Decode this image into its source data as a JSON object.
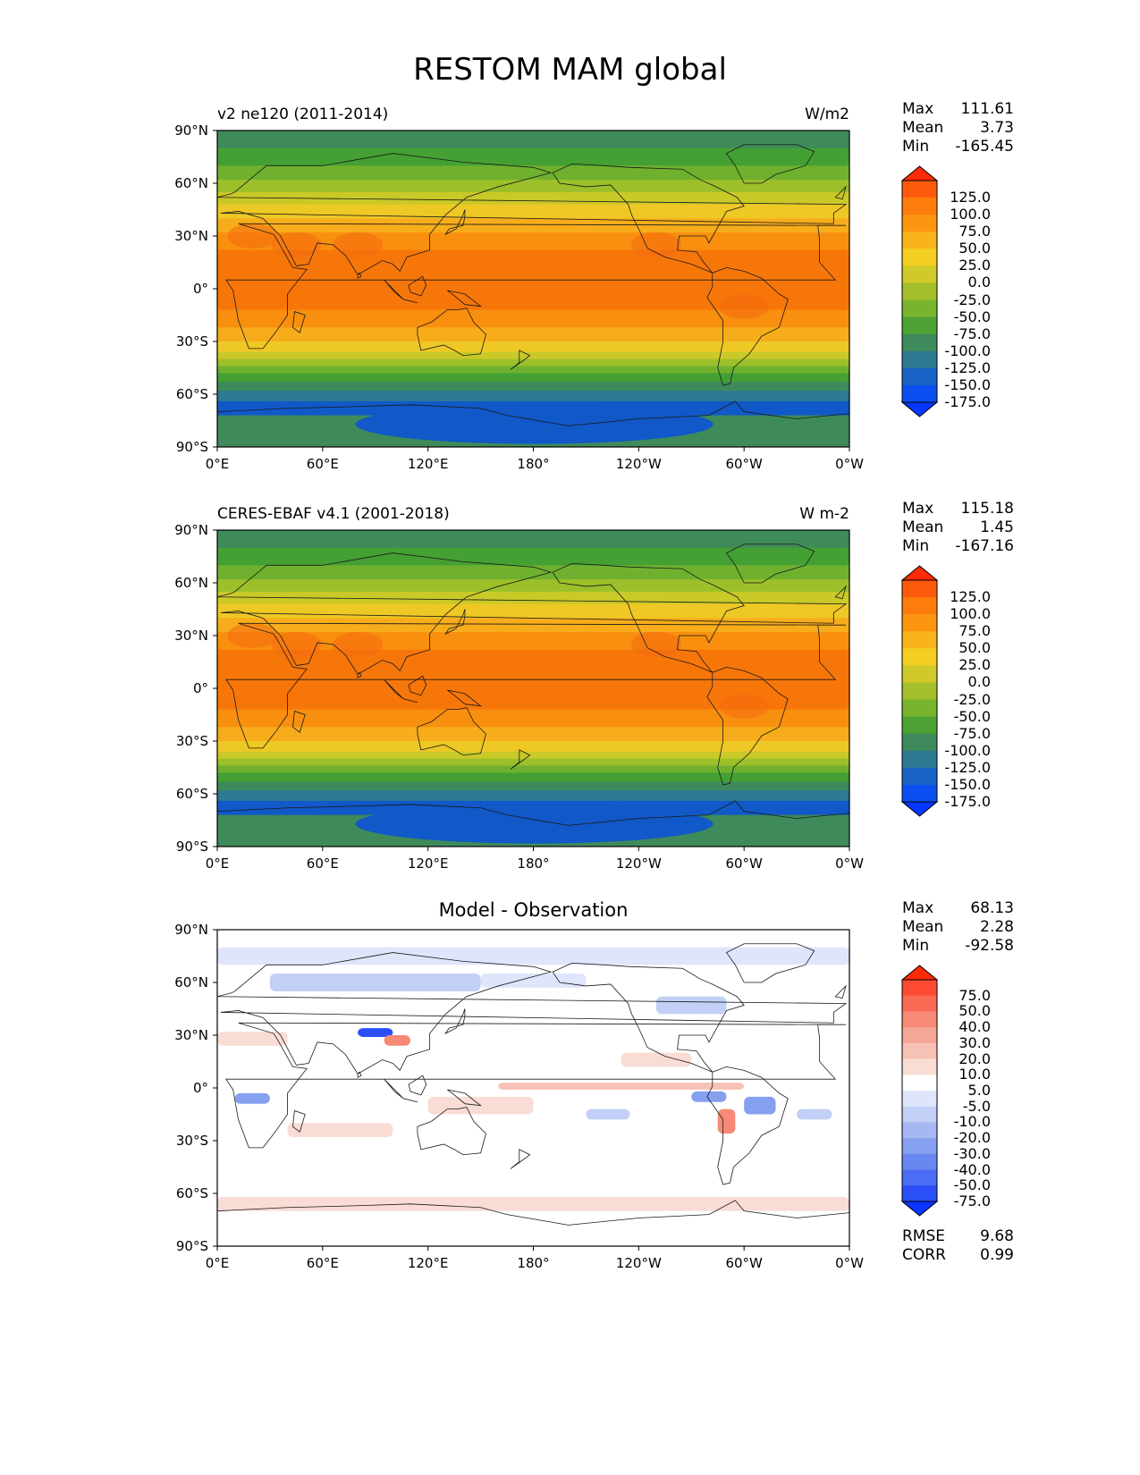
{
  "figure_title": "RESTOM MAM global",
  "chart_data": [
    {
      "type": "heatmap",
      "name": "test",
      "title": "v2 ne120 (2011-2014)",
      "units": "W/m2",
      "xlim": [
        0,
        360
      ],
      "ylim": [
        -90,
        90
      ],
      "x_ticks": [
        "0°E",
        "60°E",
        "120°E",
        "180°",
        "120°W",
        "60°W",
        "0°W"
      ],
      "y_ticks": [
        "90°N",
        "60°N",
        "30°N",
        "0°",
        "30°S",
        "60°S",
        "90°S"
      ],
      "stats": {
        "Max": "111.61",
        "Mean": "3.73",
        "Min": "-165.45"
      },
      "colorbar": {
        "levels": [
          "125.0",
          "100.0",
          "75.0",
          "50.0",
          "25.0",
          "0.0",
          "-25.0",
          "-50.0",
          "-75.0",
          "-100.0",
          "-125.0",
          "-150.0",
          "-175.0"
        ]
      }
    },
    {
      "type": "heatmap",
      "name": "reference",
      "title": "CERES-EBAF v4.1 (2001-2018)",
      "units": "W m-2",
      "xlim": [
        0,
        360
      ],
      "ylim": [
        -90,
        90
      ],
      "x_ticks": [
        "0°E",
        "60°E",
        "120°E",
        "180°",
        "120°W",
        "60°W",
        "0°W"
      ],
      "y_ticks": [
        "90°N",
        "60°N",
        "30°N",
        "0°",
        "30°S",
        "60°S",
        "90°S"
      ],
      "stats": {
        "Max": "115.18",
        "Mean": "1.45",
        "Min": "-167.16"
      },
      "colorbar": {
        "levels": [
          "125.0",
          "100.0",
          "75.0",
          "50.0",
          "25.0",
          "0.0",
          "-25.0",
          "-50.0",
          "-75.0",
          "-100.0",
          "-125.0",
          "-150.0",
          "-175.0"
        ]
      }
    },
    {
      "type": "heatmap",
      "name": "difference",
      "title": "Model - Observation",
      "units": "",
      "xlim": [
        0,
        360
      ],
      "ylim": [
        -90,
        90
      ],
      "x_ticks": [
        "0°E",
        "60°E",
        "120°E",
        "180°",
        "120°W",
        "60°W",
        "0°W"
      ],
      "y_ticks": [
        "90°N",
        "60°N",
        "30°N",
        "0°",
        "30°S",
        "60°S",
        "90°S"
      ],
      "stats": {
        "Max": "68.13",
        "Mean": "2.28",
        "Min": "-92.58"
      },
      "colorbar": {
        "levels": [
          "75.0",
          "50.0",
          "40.0",
          "30.0",
          "20.0",
          "10.0",
          "5.0",
          "-5.0",
          "-10.0",
          "-20.0",
          "-30.0",
          "-40.0",
          "-50.0",
          "-75.0"
        ]
      },
      "extra_stats": {
        "RMSE": "9.68",
        "CORR": "0.99"
      }
    }
  ],
  "colors": {
    "field_bands": [
      "#3f8a5a",
      "#44a033",
      "#6fb12e",
      "#9cbf2a",
      "#c9c928",
      "#eec825",
      "#f7ad1b",
      "#f88f0e",
      "#f7760a",
      "#f66a10"
    ],
    "antarctic": "#1158c8",
    "colorbar_field": [
      "#fe2a08",
      "#fe5a0c",
      "#fe7c0c",
      "#fc9510",
      "#f8b41a",
      "#f3cf22",
      "#d0c92a",
      "#a4bf2c",
      "#78b42e",
      "#4da234",
      "#3f8a5c",
      "#2d7a92",
      "#1a63c6",
      "#0a4ff0",
      "#0437ff"
    ],
    "colorbar_diff": [
      "#fe2a08",
      "#fe4a32",
      "#f96a55",
      "#f68a76",
      "#f4a796",
      "#f7c2b6",
      "#f9dcd4",
      "#ffffff",
      "#dfe6fb",
      "#c2cff6",
      "#a5b8f2",
      "#86a0f0",
      "#6987f1",
      "#4b6cf5",
      "#2a4ff9",
      "#0a34ff"
    ]
  }
}
